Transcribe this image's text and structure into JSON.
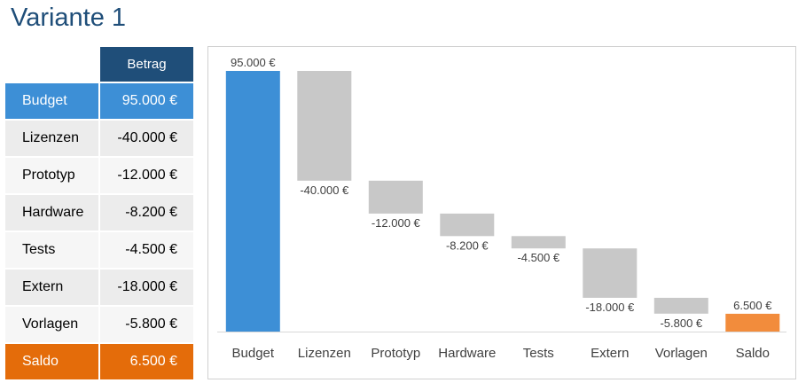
{
  "title": "Variante 1",
  "table": {
    "header": "Betrag",
    "rows": [
      {
        "label": "Budget",
        "value": "95.000 €"
      },
      {
        "label": "Lizenzen",
        "value": "-40.000 €"
      },
      {
        "label": "Prototyp",
        "value": "-12.000 €"
      },
      {
        "label": "Hardware",
        "value": "-8.200 €"
      },
      {
        "label": "Tests",
        "value": "-4.500 €"
      },
      {
        "label": "Extern",
        "value": "-18.000 €"
      },
      {
        "label": "Vorlagen",
        "value": "-5.800 €"
      },
      {
        "label": "Saldo",
        "value": "6.500 €"
      }
    ]
  },
  "colors": {
    "title": "#1f4e79",
    "header": "#1f4e79",
    "budget": "#3d8fd6",
    "step": "#c8c8c8",
    "saldo": "#f28c3c",
    "saldo_row": "#e46c0a"
  },
  "chart_data": {
    "type": "waterfall",
    "categories": [
      "Budget",
      "Lizenzen",
      "Prototyp",
      "Hardware",
      "Tests",
      "Extern",
      "Vorlagen",
      "Saldo"
    ],
    "values": [
      95000,
      -40000,
      -12000,
      -8200,
      -4500,
      -18000,
      -5800,
      6500
    ],
    "data_labels": [
      "95.000 €",
      "-40.000 €",
      "-12.000 €",
      "-8.200 €",
      "-4.500 €",
      "-18.000 €",
      "-5.800 €",
      "6.500 €"
    ],
    "total_categories": [
      "Budget",
      "Saldo"
    ],
    "ylim": [
      0,
      95000
    ],
    "grid": false,
    "legend": "none"
  }
}
